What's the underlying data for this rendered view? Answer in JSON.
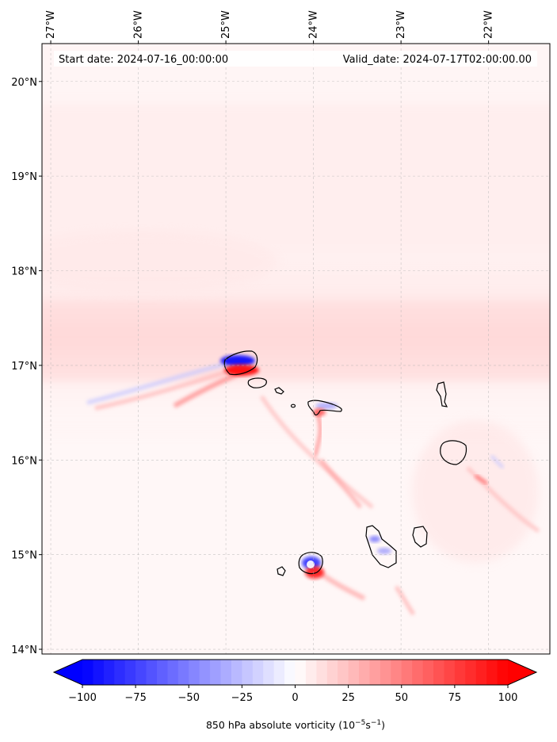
{
  "header": {
    "start_date": "Start date: 2024-07-16_00:00:00",
    "valid_date": "Valid_date: 2024-07-17T02:00:00.00"
  },
  "map": {
    "lon_range": [
      -27.1,
      -21.3
    ],
    "lat_range": [
      13.95,
      20.4
    ],
    "lon_ticks": [
      {
        "value": -27,
        "label": "27°W"
      },
      {
        "value": -26,
        "label": "26°W"
      },
      {
        "value": -25,
        "label": "25°W"
      },
      {
        "value": -24,
        "label": "24°W"
      },
      {
        "value": -23,
        "label": "23°W"
      },
      {
        "value": -22,
        "label": "22°W"
      }
    ],
    "lat_ticks": [
      {
        "value": 20,
        "label": "20°N"
      },
      {
        "value": 19,
        "label": "19°N"
      },
      {
        "value": 18,
        "label": "18°N"
      },
      {
        "value": 17,
        "label": "17°N"
      },
      {
        "value": 16,
        "label": "16°N"
      },
      {
        "value": 15,
        "label": "15°N"
      },
      {
        "value": 14,
        "label": "14°N"
      }
    ],
    "gridlines": true
  },
  "colorbar": {
    "vmin": -100,
    "vmax": 100,
    "ticks": [
      {
        "value": -100,
        "label": "−100"
      },
      {
        "value": -75,
        "label": "−75"
      },
      {
        "value": -50,
        "label": "−50"
      },
      {
        "value": -25,
        "label": "−25"
      },
      {
        "value": 0,
        "label": "0"
      },
      {
        "value": 25,
        "label": "25"
      },
      {
        "value": 50,
        "label": "50"
      },
      {
        "value": 75,
        "label": "75"
      },
      {
        "value": 100,
        "label": "100"
      }
    ],
    "label_main": "850 hPa absolute vorticity (10",
    "label_exp1": "−5",
    "label_mid": "s",
    "label_exp2": "−1",
    "label_end": ")",
    "negative_color": "#0000ff",
    "positive_color": "#ff0000",
    "extend": "both"
  },
  "colors": {
    "coastline": "#000000",
    "gridline": "#b0b0b0",
    "background_field": "#fff4f4"
  }
}
